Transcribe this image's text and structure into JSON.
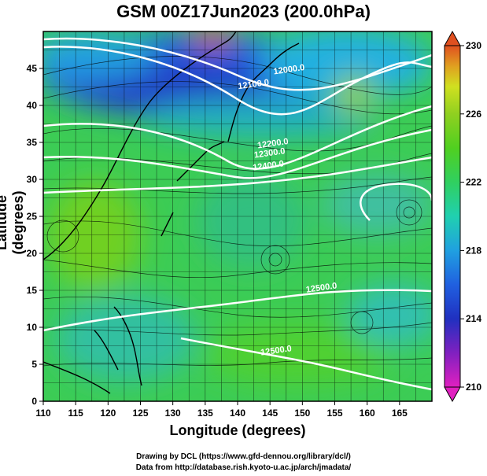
{
  "figure": {
    "title": "GSM 00Z17Jun2023 (200.0hPa)",
    "xlabel": "Longitude (degrees)",
    "ylabel": "Latitude  (degrees)",
    "credit_line1": "Drawing by DCL (https://www.gfd-dennou.org/library/dcl/)",
    "credit_line2": "Data from http://database.rish.kyoto-u.ac.jp/arch/jmadata/"
  },
  "chart_data": {
    "type": "heatmap",
    "variable_shading": "temperature-like scalar field",
    "lon_range": [
      110,
      170
    ],
    "lat_range": [
      0,
      50
    ],
    "x_ticks": [
      110,
      115,
      120,
      125,
      130,
      135,
      140,
      145,
      150,
      155,
      160,
      165
    ],
    "y_ticks": [
      0,
      5,
      10,
      15,
      20,
      25,
      30,
      35,
      40,
      45
    ],
    "grid": true,
    "colorbar": {
      "min": 210,
      "max": 230,
      "ticks": [
        210,
        214,
        218,
        222,
        226,
        230
      ],
      "colors": [
        "#e020c0",
        "#8020c0",
        "#2030c0",
        "#2060e0",
        "#20a0e0",
        "#20d0b0",
        "#30d060",
        "#50d020",
        "#90d020",
        "#d0e020",
        "#e0a020",
        "#e05020"
      ]
    },
    "contour_labels": [
      {
        "text": "12000.0",
        "lon": 148,
        "lat": 44.5
      },
      {
        "text": "12100.0",
        "lon": 142.5,
        "lat": 42.5
      },
      {
        "text": "12200.0",
        "lon": 145.5,
        "lat": 34.5
      },
      {
        "text": "12300.0",
        "lon": 145,
        "lat": 33.2
      },
      {
        "text": "12400.0",
        "lon": 144.8,
        "lat": 31.5
      },
      {
        "text": "12500.0",
        "lon": 153,
        "lat": 15
      },
      {
        "text": "12500.0",
        "lon": 146,
        "lat": 6.5
      }
    ]
  }
}
